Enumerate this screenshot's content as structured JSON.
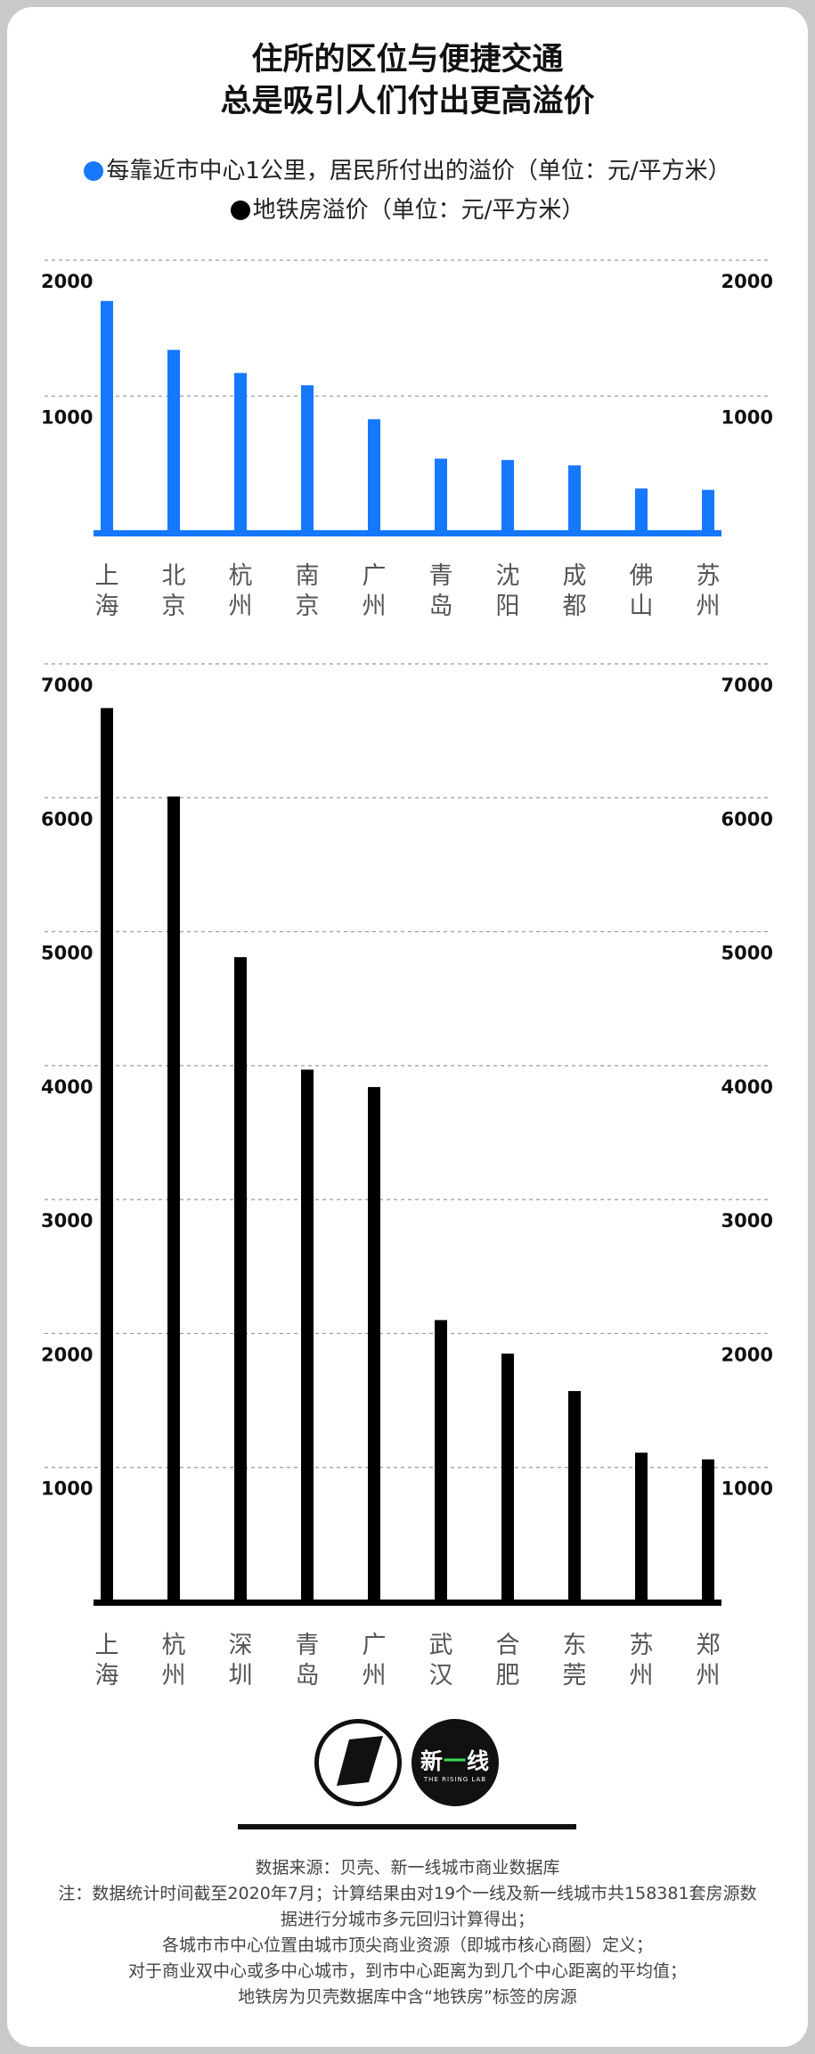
{
  "title": {
    "line1": "住所的区位与便捷交通",
    "line2": "总是吸引人们付出更高溢价"
  },
  "legend": [
    {
      "text": "每靠近市中心1公里，居民所付出的溢价（单位：元/平方米）",
      "color": "#1677ff"
    },
    {
      "text": "地铁房溢价（单位：元/平方米）",
      "color": "#000000"
    }
  ],
  "chart_data": [
    {
      "type": "bar",
      "series_name": "每靠近市中心1公里，居民所付出的溢价（单位：元/平方米）",
      "color": "#1677ff",
      "categories": [
        "上海",
        "北京",
        "杭州",
        "南京",
        "广州",
        "青岛",
        "沈阳",
        "成都",
        "佛山",
        "苏州"
      ],
      "values": [
        1700,
        1340,
        1170,
        1080,
        830,
        540,
        530,
        490,
        320,
        310
      ],
      "ylim": [
        0,
        2000
      ],
      "yticks": [
        1000,
        2000
      ],
      "grid": "dashed",
      "axis_labels_both_sides": true
    },
    {
      "type": "bar",
      "series_name": "地铁房溢价（单位：元/平方米）",
      "color": "#000000",
      "categories": [
        "上海",
        "杭州",
        "深圳",
        "青岛",
        "广州",
        "武汉",
        "合肥",
        "东莞",
        "苏州",
        "郑州"
      ],
      "values": [
        6670,
        6010,
        4810,
        3970,
        3840,
        2100,
        1850,
        1570,
        1110,
        1060
      ],
      "ylim": [
        0,
        7000
      ],
      "yticks": [
        1000,
        2000,
        3000,
        4000,
        5000,
        6000,
        7000
      ],
      "grid": "dashed",
      "axis_labels_both_sides": true
    }
  ],
  "logo": {
    "brand_text_a": "新",
    "brand_text_b": "一",
    "brand_text_c": "线",
    "brand_sub": "THE RISING LAB"
  },
  "notes": [
    "数据来源：贝壳、新一线城市商业数据库",
    "注：数据统计时间截至2020年7月；计算结果由对19个一线及新一线城市共158381套房源数",
    "据进行分城市多元回归计算得出；",
    "各城市市中心位置由城市顶尖商业资源（即城市核心商圈）定义；",
    "对于商业双中心或多中心城市，到市中心距离为到几个中心距离的平均值；",
    "地铁房为贝壳数据库中含“地铁房”标签的房源"
  ]
}
